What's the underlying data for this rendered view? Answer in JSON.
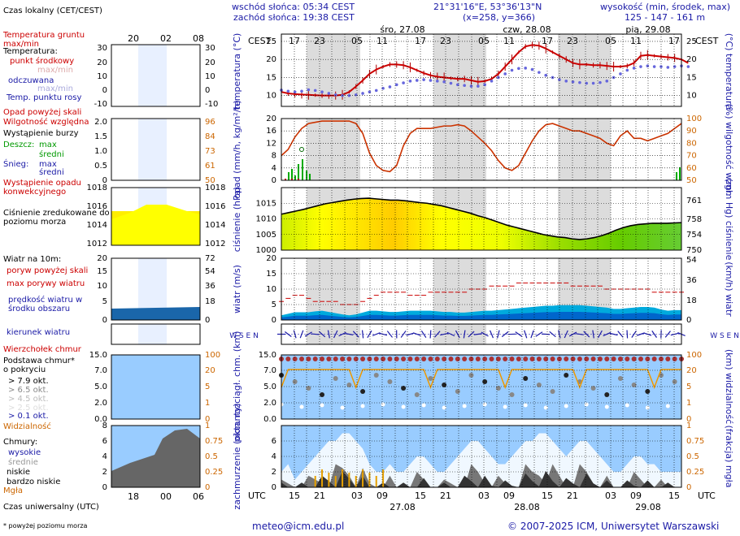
{
  "header": {
    "sunrise": "wschód słońca: 05:34 CEST",
    "sunset": "zachód słońca: 19:38 CEST",
    "coords": "21°31'16\"E, 53°36'13\"N",
    "grid": "(x=258, y=366)",
    "elevation_title": "wysokość (min, środek, max)",
    "elevation_values": "125 - 147 - 161 m",
    "tz_left": "CEST",
    "tz_right": "CEST",
    "days_top": [
      "śro, 27.08",
      "czw, 28.08",
      "pią, 29.08"
    ],
    "hours_top": [
      "17",
      "23",
      "05",
      "11",
      "17",
      "23",
      "05",
      "11",
      "17",
      "23",
      "05",
      "11",
      "17"
    ]
  },
  "legend": {
    "local_time": "Czas lokalny (CET/CEST)",
    "legend_hours_top": [
      "20",
      "02",
      "08"
    ],
    "soil_temp": "Temperatura gruntu max/min",
    "temperature": "Temperatura:",
    "midpoint": "punkt środkowy",
    "max_min": "max/min",
    "perceived": "odczuwana",
    "perceived_max_min": "max/min",
    "dew_point": "Temp. punktu rosy",
    "precip_above": "Opad powyżej skali",
    "humidity": "Wilgotność względna",
    "storm": "Wystąpienie burzy",
    "rain": "Deszcz:",
    "rain_max": "max",
    "rain_mean": "średni",
    "snow": "Śnieg:",
    "snow_max": "max",
    "snow_mean": "średni",
    "conv_precip": "Wystąpienie opadu konwekcyjnego",
    "pressure": "Ciśnienie zredukowane do poziomu morza",
    "wind": "Wiatr na 10m:",
    "gust_above": "poryw powyżej skali",
    "max_gust": "max porywy wiatru",
    "wind_speed": "prędkość wiatru w środku obszaru",
    "wind_dir": "kierunek wiatru",
    "cloud_top": "Wierzchołek chmur",
    "cloud_base": "Podstawa chmur* o pokryciu",
    "okt": [
      "> 7.9 okt.",
      "> 6.5 okt.",
      "> 4.5 okt.",
      "> 2.5 okt.",
      "> 0.1 okt."
    ],
    "visibility": "Widzialność",
    "clouds": "Chmury:",
    "high": "wysokie",
    "mid": "średnie",
    "low": "niskie",
    "very_low": "bardzo niskie",
    "fog": "Mgła",
    "utc_label": "Czas uniwersalny (UTC)",
    "legend_hours_bottom": [
      "18",
      "00",
      "06"
    ],
    "footnote": "* powyżej poziomu morza"
  },
  "axis_titles": {
    "temp_left": "temperatura (°C)",
    "temp_right": "(°C) temperatura",
    "precip_left": "opad (mm/h, kg/m²/h)",
    "precip_right": "(%) wilgotność wzgl.",
    "pressure_left": "ciśnienie (hPa)",
    "pressure_right": "(mm Hg) ciśnienie",
    "wind_left": "wiatr (m/s)",
    "wind_right": "(km/h) wiatr",
    "cloud_left": "pion. rozciągł. chm. (km)",
    "cloud_right": "(km) widzialność",
    "cover_left": "zachmurzenie (oktanty)",
    "cover_right": "(frakcja) mgła",
    "compass_left": "W S E N",
    "compass_right": "W S E N"
  },
  "footer": {
    "utc": "UTC",
    "utc_right": "UTC",
    "hours_bottom": [
      "15",
      "21",
      "03",
      "09",
      "15",
      "21",
      "03",
      "09",
      "15",
      "21",
      "03",
      "09",
      "15"
    ],
    "days_bottom": [
      "27.08",
      "28.08",
      "29.08"
    ],
    "email": "meteo@icm.edu.pl",
    "copyright": "© 2007-2025 ICM, Uniwersytet Warszawski"
  },
  "colors": {
    "temp": "#cc0000",
    "dew": "#4444cc",
    "humidity": "#cc3300",
    "pressure_fill": "#ffff00",
    "wind_fill": "#00aadd",
    "sky": "#99ccff",
    "label_blue": "#1a1aa6",
    "label_red": "#cc0000",
    "label_green": "#009900",
    "label_orange": "#cc6600"
  },
  "chart_data": [
    {
      "type": "line",
      "title": "temperatura",
      "ylim": [
        7,
        27
      ],
      "yticks": [
        10,
        15,
        20,
        25
      ],
      "series": [
        {
          "values": [
            11,
            10.6,
            10.4,
            10.3,
            10.2,
            10.1,
            10,
            10,
            10,
            10.2,
            11,
            12.5,
            14.2,
            16,
            17.2,
            18,
            18.6,
            18.6,
            18.4,
            17.8,
            17,
            16.2,
            15.6,
            15.2,
            15,
            14.8,
            14.6,
            14.6,
            14.2,
            13.8,
            14,
            14.6,
            16,
            18,
            20,
            22,
            23.6,
            24,
            23.8,
            23,
            22,
            21,
            20,
            19,
            18.6,
            18.6,
            18.4,
            18.4,
            18.2,
            18,
            18,
            18.2,
            19,
            21,
            21.2,
            21,
            20.8,
            20.6,
            20.4,
            20,
            19
          ]
        },
        {
          "values": [
            11.5,
            11.2,
            11,
            11.2,
            11.6,
            11.4,
            11,
            10.6,
            10.2,
            10,
            10,
            10.2,
            10.6,
            11,
            11.4,
            12,
            12.4,
            13,
            13.5,
            14,
            14.2,
            14.4,
            14.2,
            14,
            13.8,
            13.4,
            13,
            12.8,
            12.6,
            12.6,
            13,
            14,
            15,
            16,
            17,
            17.5,
            17.6,
            17.2,
            16.4,
            15.6,
            15,
            14.4,
            14,
            13.8,
            13.6,
            13.4,
            13.4,
            13.6,
            14,
            15,
            16,
            17,
            17.6,
            18,
            18.2,
            18,
            18,
            17.8,
            18,
            18.2,
            18
          ]
        }
      ]
    },
    {
      "type": "line",
      "title": "wilgotność",
      "ylim": [
        50,
        100
      ],
      "series": [
        {
          "values": [
            70,
            75,
            85,
            92,
            96,
            97,
            98,
            98,
            98,
            98,
            98,
            96,
            88,
            72,
            62,
            58,
            57,
            62,
            78,
            88,
            92,
            92,
            92,
            93,
            94,
            94,
            95,
            94,
            90,
            85,
            80,
            74,
            66,
            60,
            58,
            62,
            72,
            82,
            90,
            95,
            96,
            94,
            92,
            90,
            90,
            88,
            86,
            84,
            80,
            78,
            86,
            90,
            84,
            84,
            82,
            84,
            86,
            88,
            92,
            96
          ]
        }
      ]
    },
    {
      "type": "area",
      "title": "ciśnienie",
      "ylim": [
        1000,
        1020
      ],
      "yticks": [
        1000,
        1005,
        1010,
        1015
      ],
      "values": [
        1011.5,
        1012,
        1012.5,
        1013,
        1013.6,
        1014.2,
        1014.8,
        1015.2,
        1015.6,
        1016,
        1016.3,
        1016.5,
        1016.6,
        1016.4,
        1016.2,
        1016,
        1016,
        1015.8,
        1015.5,
        1015.2,
        1015,
        1014.6,
        1014.2,
        1013.6,
        1013,
        1012.4,
        1011.8,
        1011,
        1010.4,
        1009.6,
        1008.8,
        1008,
        1007.4,
        1006.8,
        1006.2,
        1005.6,
        1005,
        1004.6,
        1004.2,
        1004,
        1003.6,
        1003.4,
        1003.6,
        1004,
        1004.6,
        1005.4,
        1006.4,
        1007.2,
        1007.8,
        1008.2,
        1008.4,
        1008.6,
        1008.6,
        1008.6,
        1008.7,
        1008.8
      ]
    },
    {
      "type": "area",
      "title": "wiatr",
      "ylim": [
        0,
        20
      ],
      "yticks": [
        0,
        5,
        10,
        15,
        20
      ],
      "values": [
        1.5,
        2,
        2.5,
        2.5,
        2.5,
        2.8,
        3,
        2.6,
        2.2,
        1.8,
        1.5,
        1.8,
        2.4,
        3,
        3,
        2.8,
        2.6,
        2.6,
        2.8,
        3,
        3,
        3,
        3,
        2.8,
        2.6,
        2.6,
        2.4,
        2.4,
        2.6,
        2.8,
        3,
        3,
        3.2,
        3.4,
        3.6,
        3.8,
        4,
        4.2,
        4.4,
        4.6,
        4.6,
        4.8,
        4.8,
        4.8,
        4.8,
        4.6,
        4.4,
        4.2,
        4,
        3.6,
        3.6,
        3.8,
        4,
        4.2,
        4.2,
        4,
        3.4,
        3,
        3.2,
        3.2
      ],
      "gusts": [
        6,
        7,
        8,
        8,
        7,
        6,
        6,
        6,
        6,
        5,
        5,
        5,
        6,
        7,
        8,
        9,
        9,
        9,
        9,
        8,
        8,
        8,
        9,
        9,
        9,
        9,
        9,
        9,
        10,
        10,
        10,
        11,
        11,
        11,
        11,
        12,
        12,
        12,
        12,
        12,
        12,
        12,
        12,
        11,
        11,
        11,
        11,
        11,
        10,
        10,
        10,
        10,
        10,
        10,
        10,
        9,
        9,
        9,
        9,
        9
      ]
    },
    {
      "type": "area",
      "title": "zachmurzenie",
      "ylim": [
        0,
        8
      ],
      "yticks": [
        0,
        2,
        4,
        6,
        8
      ]
    }
  ]
}
